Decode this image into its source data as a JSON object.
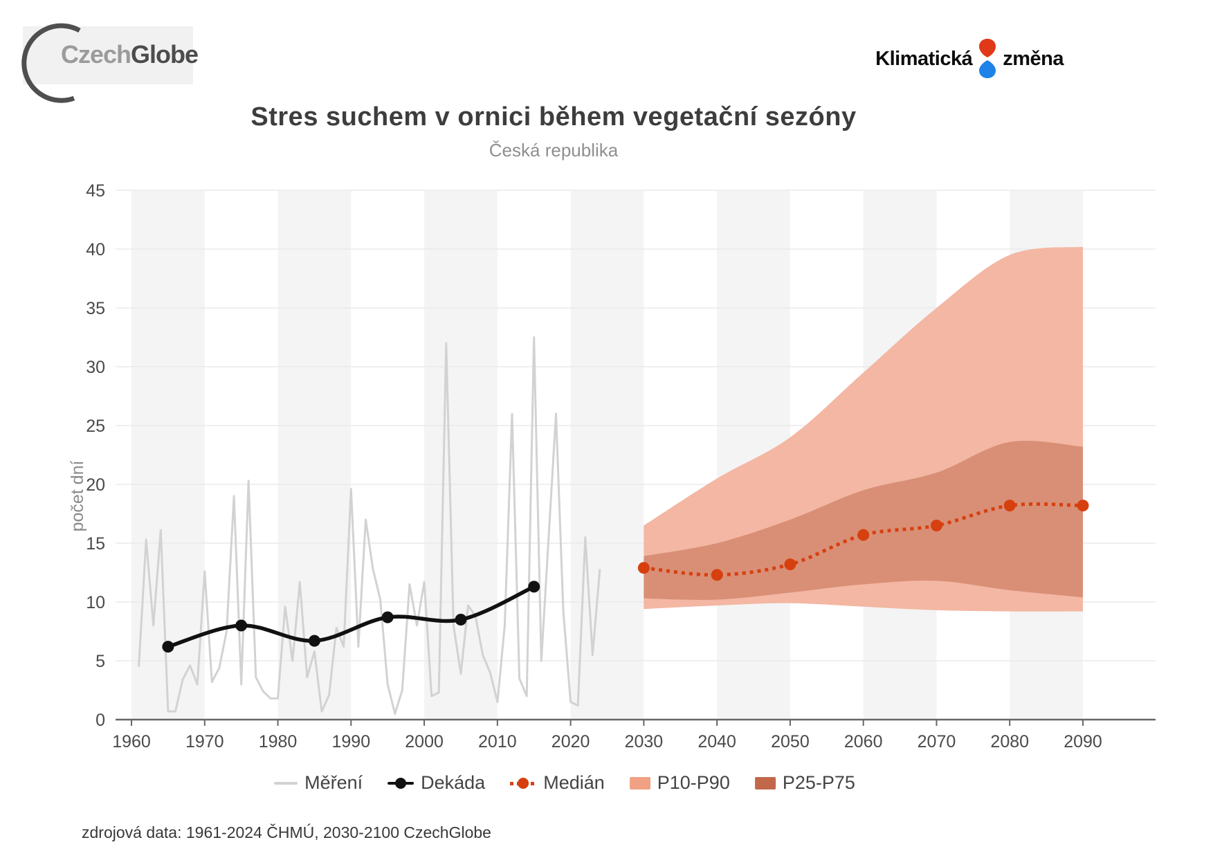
{
  "header": {
    "logo_czechglobe": {
      "part1": "Czech",
      "part2": "Globe",
      "arc_color": "#4f4f4f"
    },
    "logo_klimaticka": {
      "word1": "Klimatická",
      "word2": "změna",
      "drop_top_color": "#e0391a",
      "drop_bottom_color": "#1e82e8"
    }
  },
  "chart_data": {
    "type": "line",
    "title": "Stres suchem v ornici během vegetační sezóny",
    "subtitle": "Česká republika",
    "ylabel": "počet dní",
    "ylim": [
      0,
      45
    ],
    "yticks": [
      0,
      5,
      10,
      15,
      20,
      25,
      30,
      35,
      40,
      45
    ],
    "xticks": [
      1960,
      1970,
      1980,
      1990,
      2000,
      2010,
      2020,
      2030,
      2040,
      2050,
      2060,
      2070,
      2080,
      2090
    ],
    "grid": true,
    "shaded_decades": [
      1960,
      1980,
      2000,
      2020,
      2040,
      2060,
      2080
    ],
    "colors": {
      "stripe": "#f4f4f4",
      "grid": "#eaeaea",
      "axis": "#666666",
      "tick_text": "#4a4a4a",
      "axis_label": "#8a8a8a"
    },
    "series": [
      {
        "name": "Měření",
        "kind": "line",
        "color": "#d2d2d2",
        "start_year": 1961,
        "values": [
          4.5,
          15.3,
          8.0,
          16.1,
          0.7,
          0.7,
          3.4,
          4.6,
          3.0,
          12.6,
          3.2,
          4.4,
          7.5,
          19.0,
          3.0,
          20.3,
          3.6,
          2.4,
          1.8,
          1.8,
          9.6,
          5.0,
          11.7,
          3.6,
          5.8,
          0.7,
          2.1,
          7.8,
          6.2,
          19.6,
          6.2,
          17.0,
          12.8,
          10.2,
          3.0,
          0.5,
          2.5,
          11.5,
          8.0,
          11.7,
          2.0,
          2.3,
          32.0,
          8.0,
          3.9,
          9.7,
          8.8,
          5.5,
          4.0,
          1.5,
          8.0,
          26.0,
          3.5,
          2.0,
          32.5,
          5.0,
          15.5,
          26.0,
          9.3,
          1.5,
          1.2,
          15.5,
          5.5,
          12.8
        ]
      },
      {
        "name": "Dekáda",
        "kind": "line-markers",
        "color": "#111111",
        "x": [
          1965,
          1975,
          1985,
          1995,
          2005,
          2015
        ],
        "values": [
          6.2,
          8.0,
          6.7,
          8.7,
          8.5,
          11.3
        ]
      },
      {
        "name": "Medián",
        "kind": "dotted-markers",
        "color": "#d6400f",
        "x": [
          2030,
          2040,
          2050,
          2060,
          2070,
          2080,
          2090
        ],
        "values": [
          12.9,
          12.3,
          13.2,
          15.7,
          16.5,
          18.2,
          18.2
        ]
      },
      {
        "name": "P10-P90",
        "kind": "band",
        "color": "#f3b7a3",
        "x": [
          2030,
          2040,
          2050,
          2060,
          2070,
          2080,
          2090
        ],
        "upper": [
          16.5,
          20.5,
          24.0,
          29.5,
          35.0,
          39.5,
          40.2
        ],
        "lower": [
          9.4,
          9.7,
          9.9,
          9.6,
          9.3,
          9.2,
          9.2
        ]
      },
      {
        "name": "P25-P75",
        "kind": "band",
        "color": "#d98f76",
        "x": [
          2030,
          2040,
          2050,
          2060,
          2070,
          2080,
          2090
        ],
        "upper": [
          13.9,
          15.0,
          17.0,
          19.5,
          21.0,
          23.6,
          23.2
        ],
        "lower": [
          10.3,
          10.2,
          10.8,
          11.5,
          11.8,
          11.0,
          10.4
        ]
      }
    ]
  },
  "legend": {
    "items": [
      {
        "label": "Měření",
        "swatch": "line",
        "color": "#d2d2d2"
      },
      {
        "label": "Dekáda",
        "swatch": "line-dot",
        "color": "#111111"
      },
      {
        "label": "Medián",
        "swatch": "dash-dot",
        "color": "#d6400f"
      },
      {
        "label": "P10-P90",
        "swatch": "band",
        "color": "#f0a183"
      },
      {
        "label": "P25-P75",
        "swatch": "band",
        "color": "#c2684a"
      }
    ]
  },
  "footer": {
    "source": "zdrojová data: 1961-2024 ČHMÚ, 2030-2100 CzechGlobe"
  }
}
